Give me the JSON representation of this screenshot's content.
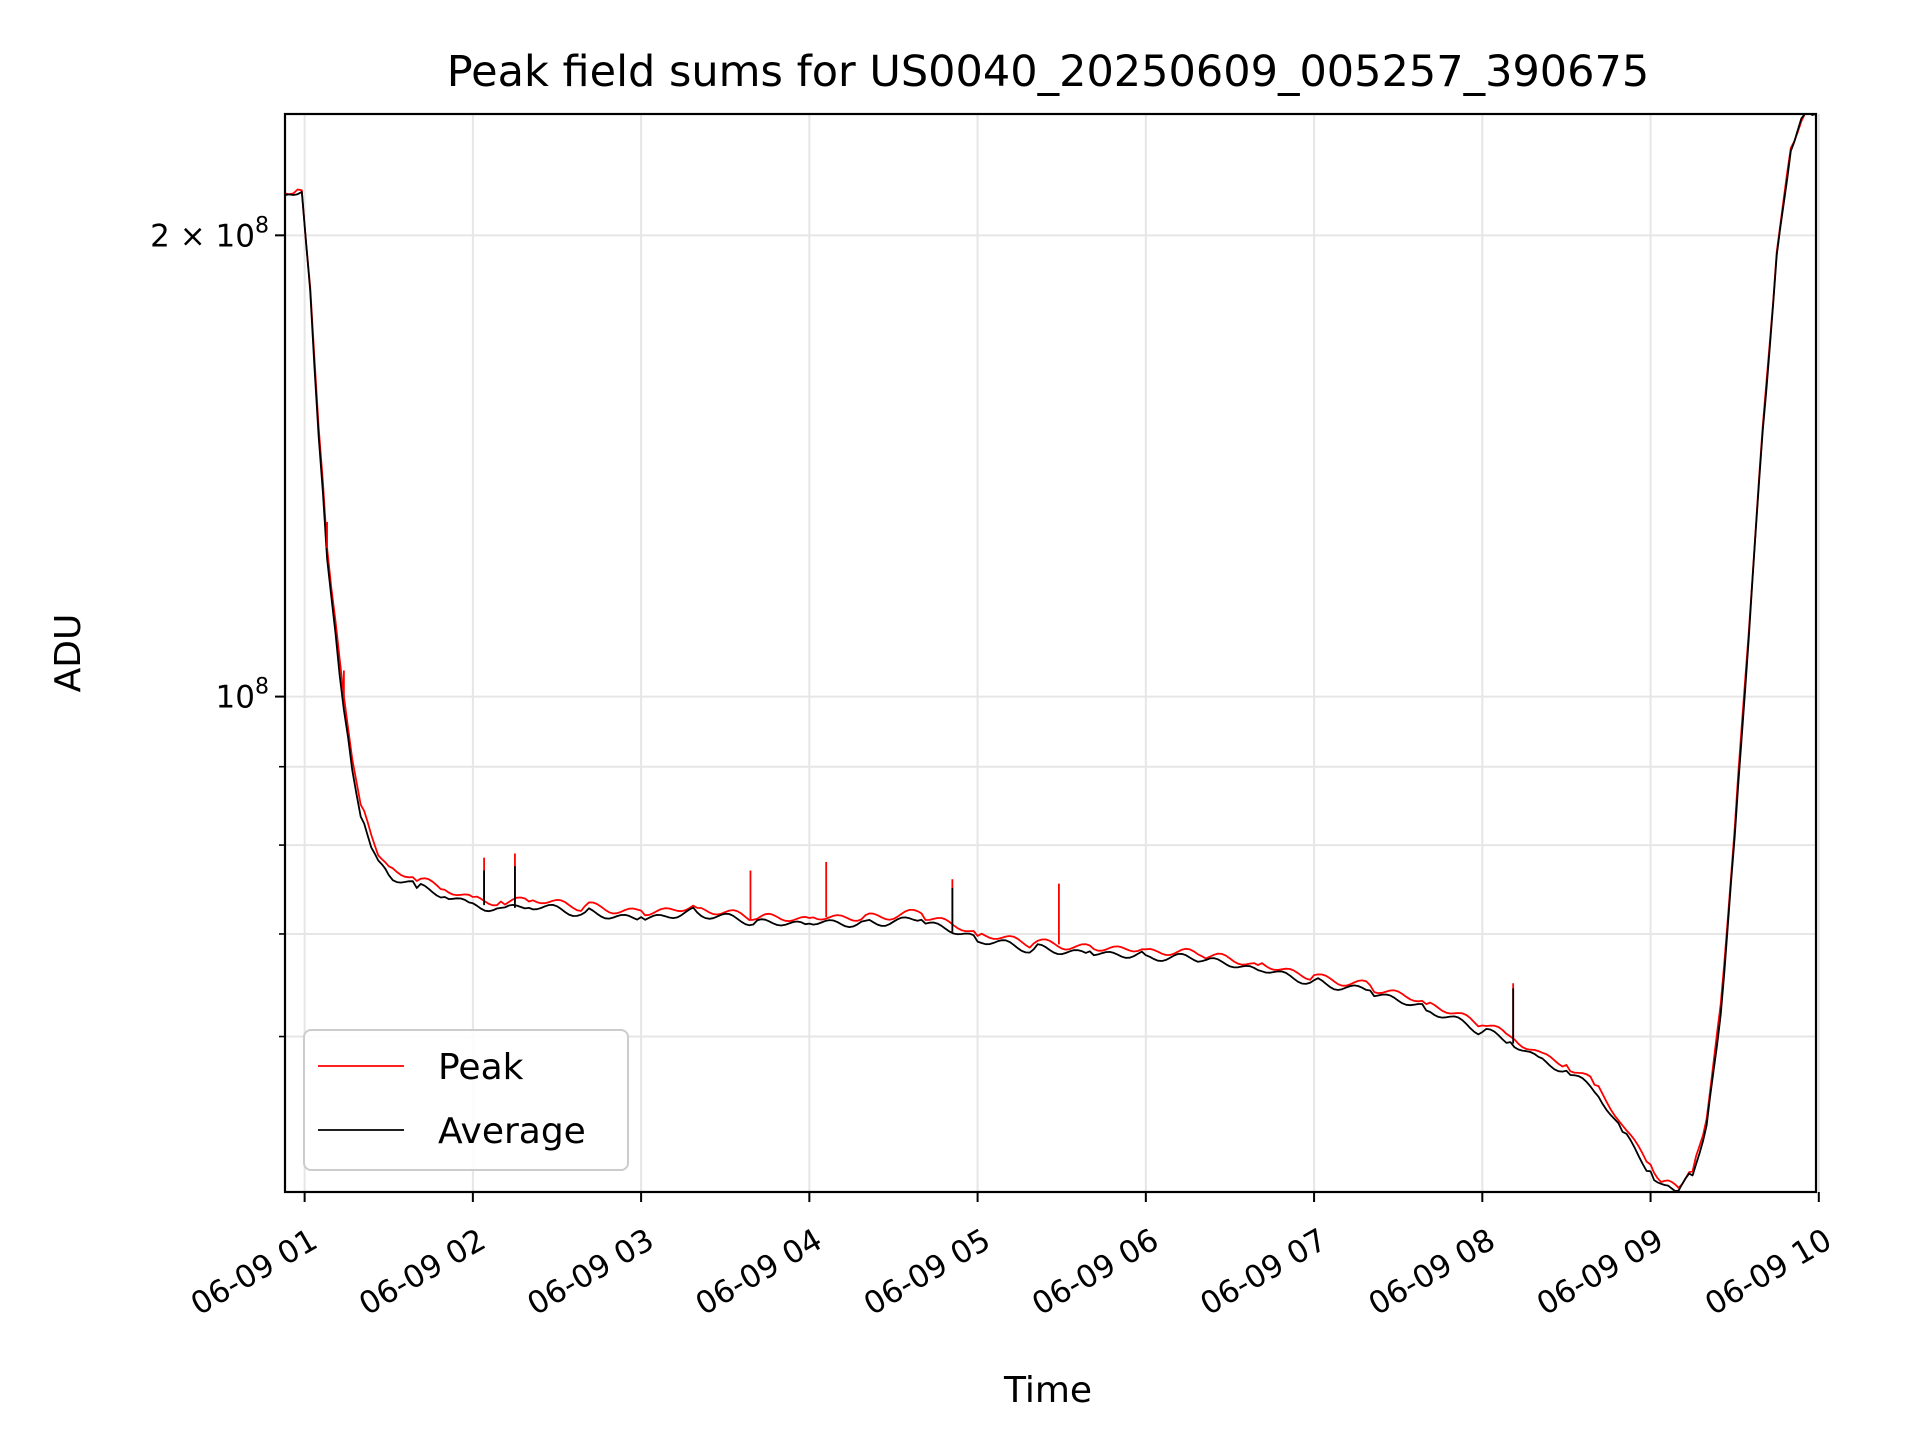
{
  "chart_data": {
    "type": "line",
    "title": "Peak field sums for US0040_20250609_005257_390675",
    "xlabel": "Time",
    "ylabel": "ADU",
    "y_scale": "log",
    "ylim": [
      47500000,
      240000000
    ],
    "xlim": [
      "06-09 00:53",
      "06-09 09:59"
    ],
    "grid": true,
    "legend": {
      "position": "lower-left"
    },
    "x_ticks": [
      "06-09 01",
      "06-09 02",
      "06-09 03",
      "06-09 04",
      "06-09 05",
      "06-09 06",
      "06-09 07",
      "06-09 08",
      "06-09 09",
      "06-09 10"
    ],
    "y_major_ticks": [
      {
        "value": 200000000,
        "label_base": "2 × 10",
        "label_exp": "8"
      },
      {
        "value": 100000000,
        "label_base": "10",
        "label_exp": "8"
      }
    ],
    "y_minor_ticks": [
      60000000,
      70000000,
      80000000,
      90000000
    ],
    "series": [
      {
        "name": "Peak",
        "color": "#ff0000",
        "points": [
          [
            "06-09 00:53",
            213000000
          ],
          [
            "06-09 00:56",
            213000000
          ],
          [
            "06-09 00:59",
            214000000
          ],
          [
            "06-09 01:02",
            185000000
          ],
          [
            "06-09 01:05",
            150000000
          ],
          [
            "06-09 01:08",
            125000000
          ],
          [
            "06-09 01:11",
            112000000
          ],
          [
            "06-09 01:14",
            100000000
          ],
          [
            "06-09 01:17",
            91000000
          ],
          [
            "06-09 01:20",
            85000000
          ],
          [
            "06-09 01:25",
            80000000
          ],
          [
            "06-09 01:30",
            77500000
          ],
          [
            "06-09 01:40",
            75800000
          ],
          [
            "06-09 01:50",
            74800000
          ],
          [
            "06-09 02:00",
            74000000
          ],
          [
            "06-09 02:10",
            73500000
          ],
          [
            "06-09 02:20",
            73500000
          ],
          [
            "06-09 02:40",
            73000000
          ],
          [
            "06-09 03:00",
            72500000
          ],
          [
            "06-09 03:20",
            72800000
          ],
          [
            "06-09 03:40",
            71500000
          ],
          [
            "06-09 04:00",
            71700000
          ],
          [
            "06-09 04:20",
            72000000
          ],
          [
            "06-09 04:40",
            72200000
          ],
          [
            "06-09 05:00",
            69800000
          ],
          [
            "06-09 05:20",
            69000000
          ],
          [
            "06-09 05:40",
            68800000
          ],
          [
            "06-09 06:00",
            68400000
          ],
          [
            "06-09 06:20",
            67700000
          ],
          [
            "06-09 06:40",
            66800000
          ],
          [
            "06-09 07:00",
            65800000
          ],
          [
            "06-09 07:20",
            64800000
          ],
          [
            "06-09 07:40",
            63000000
          ],
          [
            "06-09 08:00",
            61000000
          ],
          [
            "06-09 08:10",
            60000000
          ],
          [
            "06-09 08:20",
            58700000
          ],
          [
            "06-09 08:30",
            57500000
          ],
          [
            "06-09 08:40",
            55800000
          ],
          [
            "06-09 08:50",
            52500000
          ],
          [
            "06-09 09:00",
            49500000
          ],
          [
            "06-09 09:05",
            48300000
          ],
          [
            "06-09 09:10",
            47800000
          ],
          [
            "06-09 09:15",
            49000000
          ],
          [
            "06-09 09:20",
            53000000
          ],
          [
            "06-09 09:25",
            63000000
          ],
          [
            "06-09 09:30",
            82000000
          ],
          [
            "06-09 09:35",
            110000000
          ],
          [
            "06-09 09:40",
            150000000
          ],
          [
            "06-09 09:45",
            195000000
          ],
          [
            "06-09 09:50",
            228000000
          ],
          [
            "06-09 09:55",
            240000000
          ],
          [
            "06-09 09:59",
            240000000
          ]
        ]
      },
      {
        "name": "Average",
        "color": "#000000",
        "points": [
          [
            "06-09 00:53",
            212500000
          ],
          [
            "06-09 00:56",
            212500000
          ],
          [
            "06-09 00:59",
            213500000
          ],
          [
            "06-09 01:02",
            184000000
          ],
          [
            "06-09 01:05",
            148000000
          ],
          [
            "06-09 01:08",
            123000000
          ],
          [
            "06-09 01:11",
            110000000
          ],
          [
            "06-09 01:14",
            98000000
          ],
          [
            "06-09 01:17",
            89500000
          ],
          [
            "06-09 01:20",
            83500000
          ],
          [
            "06-09 01:25",
            79000000
          ],
          [
            "06-09 01:30",
            76500000
          ],
          [
            "06-09 01:40",
            75000000
          ],
          [
            "06-09 01:50",
            74000000
          ],
          [
            "06-09 02:00",
            73300000
          ],
          [
            "06-09 02:10",
            72800000
          ],
          [
            "06-09 02:20",
            72800000
          ],
          [
            "06-09 02:40",
            72300000
          ],
          [
            "06-09 03:00",
            71800000
          ],
          [
            "06-09 03:20",
            72300000
          ],
          [
            "06-09 03:40",
            71000000
          ],
          [
            "06-09 04:00",
            71100000
          ],
          [
            "06-09 04:20",
            71400000
          ],
          [
            "06-09 04:40",
            71500000
          ],
          [
            "06-09 05:00",
            69200000
          ],
          [
            "06-09 05:20",
            68400000
          ],
          [
            "06-09 05:40",
            68200000
          ],
          [
            "06-09 06:00",
            67800000
          ],
          [
            "06-09 06:20",
            67200000
          ],
          [
            "06-09 06:40",
            66300000
          ],
          [
            "06-09 07:00",
            65300000
          ],
          [
            "06-09 07:20",
            64300000
          ],
          [
            "06-09 07:40",
            62400000
          ],
          [
            "06-09 08:00",
            60400000
          ],
          [
            "06-09 08:10",
            59500000
          ],
          [
            "06-09 08:20",
            58200000
          ],
          [
            "06-09 08:30",
            57000000
          ],
          [
            "06-09 08:40",
            55200000
          ],
          [
            "06-09 08:50",
            52000000
          ],
          [
            "06-09 09:00",
            49000000
          ],
          [
            "06-09 09:05",
            48000000
          ],
          [
            "06-09 09:10",
            47600000
          ],
          [
            "06-09 09:15",
            48700000
          ],
          [
            "06-09 09:20",
            52500000
          ],
          [
            "06-09 09:25",
            62000000
          ],
          [
            "06-09 09:30",
            81000000
          ],
          [
            "06-09 09:35",
            109000000
          ],
          [
            "06-09 09:40",
            149000000
          ],
          [
            "06-09 09:45",
            194000000
          ],
          [
            "06-09 09:50",
            227000000
          ],
          [
            "06-09 09:55",
            240000000
          ],
          [
            "06-09 09:59",
            240000000
          ]
        ]
      }
    ],
    "spikes": [
      {
        "series": "Peak",
        "x": "06-09 01:08",
        "y": 130000000
      },
      {
        "series": "Peak",
        "x": "06-09 01:14",
        "y": 104000000
      },
      {
        "series": "Peak",
        "x": "06-09 02:04",
        "y": 78500000
      },
      {
        "series": "Peak",
        "x": "06-09 02:15",
        "y": 79000000
      },
      {
        "series": "Peak",
        "x": "06-09 03:39",
        "y": 77000000
      },
      {
        "series": "Peak",
        "x": "06-09 04:06",
        "y": 78000000
      },
      {
        "series": "Peak",
        "x": "06-09 04:51",
        "y": 76000000
      },
      {
        "series": "Peak",
        "x": "06-09 05:29",
        "y": 75500000
      },
      {
        "series": "Peak",
        "x": "06-09 08:11",
        "y": 65000000
      },
      {
        "series": "Average",
        "x": "06-09 02:04",
        "y": 77000000
      },
      {
        "series": "Average",
        "x": "06-09 02:15",
        "y": 77500000
      },
      {
        "series": "Average",
        "x": "06-09 04:51",
        "y": 75000000
      },
      {
        "series": "Average",
        "x": "06-09 08:11",
        "y": 64500000
      }
    ]
  }
}
